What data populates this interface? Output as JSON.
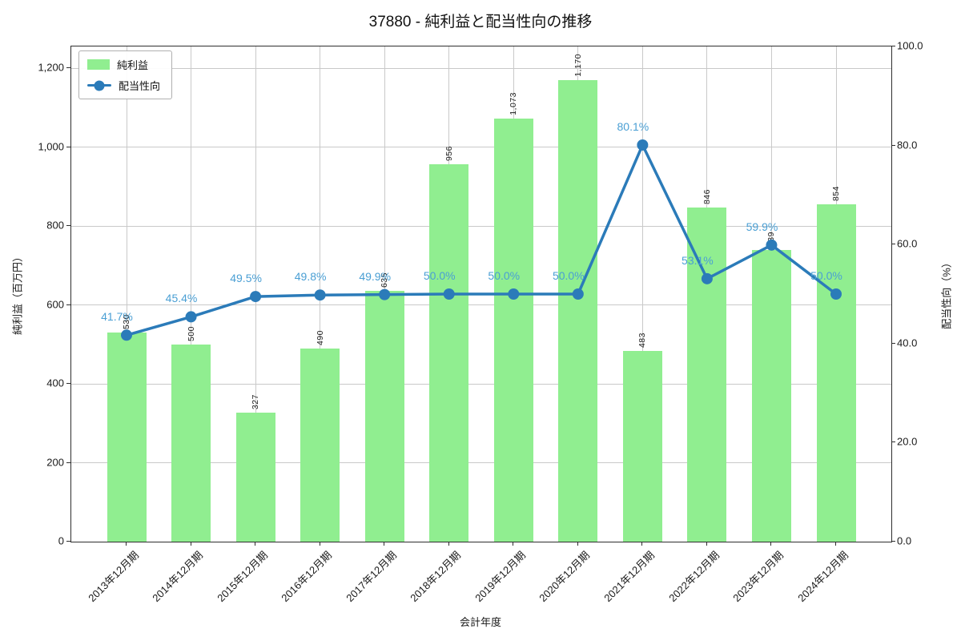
{
  "title": "37880 - 純利益と配当性向の推移",
  "legend": {
    "bar_label": "純利益",
    "line_label": "配当性向"
  },
  "axes": {
    "x_label": "会計年度",
    "left_label": "純利益（百万円）",
    "right_label": "配当性向（%）",
    "left_tick_labels": [
      "0",
      "200",
      "400",
      "600",
      "800",
      "1,000",
      "1,200"
    ],
    "left_tick_values": [
      0,
      200,
      400,
      600,
      800,
      1000,
      1200
    ],
    "right_tick_labels": [
      "0.0",
      "20.0",
      "40.0",
      "60.0",
      "80.0",
      "100.0"
    ],
    "right_tick_values": [
      0,
      20,
      40,
      60,
      80,
      100
    ]
  },
  "chart_data": {
    "type": "bar+line",
    "title": "37880 - 純利益と配当性向の推移",
    "xlabel": "会計年度",
    "ylabel_left": "純利益（百万円）",
    "ylabel_right": "配当性向（%）",
    "ylim_left": [
      0,
      1255
    ],
    "ylim_right": [
      0,
      100
    ],
    "grid": true,
    "legend_position": "upper-left",
    "categories": [
      "2013年12月期",
      "2014年12月期",
      "2015年12月期",
      "2016年12月期",
      "2017年12月期",
      "2018年12月期",
      "2019年12月期",
      "2020年12月期",
      "2021年12月期",
      "2022年12月期",
      "2023年12月期",
      "2024年12月期"
    ],
    "series": [
      {
        "name": "純利益",
        "type": "bar",
        "axis": "left",
        "unit": "百万円",
        "color": "#90ee90",
        "values": [
          530,
          500,
          327,
          490,
          635,
          956,
          1073,
          1170,
          483,
          846,
          739,
          854
        ],
        "labels": [
          "530",
          "500",
          "327",
          "490",
          "635",
          "956",
          "1,073",
          "1,170",
          "483",
          "846",
          "739",
          "854"
        ]
      },
      {
        "name": "配当性向",
        "type": "line",
        "axis": "right",
        "unit": "%",
        "color": "#2b7bb9",
        "label_color": "#4a9fd4",
        "values": [
          41.7,
          45.4,
          49.5,
          49.8,
          49.9,
          50.0,
          50.0,
          50.0,
          80.1,
          53.1,
          59.9,
          50.0
        ],
        "labels": [
          "41.7%",
          "45.4%",
          "49.5%",
          "49.8%",
          "49.9%",
          "50.0%",
          "50.0%",
          "50.0%",
          "80.1%",
          "53.1%",
          "59.9%",
          "50.0%"
        ]
      }
    ]
  }
}
